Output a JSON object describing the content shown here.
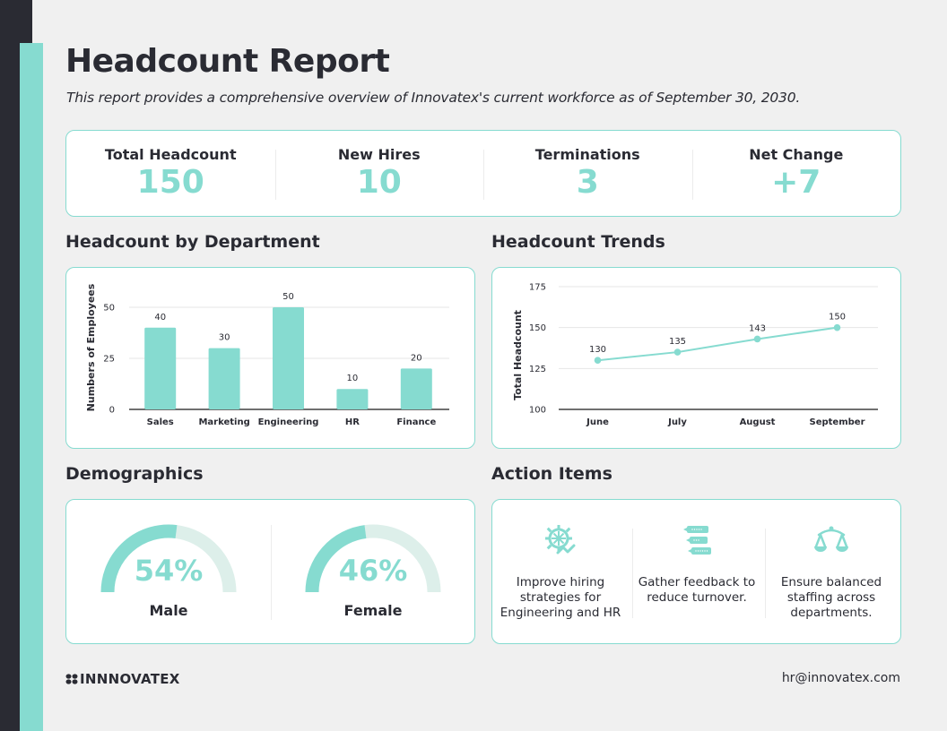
{
  "header": {
    "title": "Headcount Report",
    "subtitle": "This report provides a comprehensive overview of Innovatex's current workforce as of September 30, 2030."
  },
  "kpis": [
    {
      "label": "Total Headcount",
      "value": "150"
    },
    {
      "label": "New Hires",
      "value": "10"
    },
    {
      "label": "Terminations",
      "value": "3"
    },
    {
      "label": "Net Change",
      "value": "+7"
    }
  ],
  "sections": {
    "department": "Headcount by Department",
    "trends": "Headcount Trends",
    "demographics": "Demographics",
    "actions": "Action Items"
  },
  "colors": {
    "accent": "#86dbd0",
    "accent_light": "#ddefea",
    "dark": "#2a2b33",
    "background": "#f0f0f0"
  },
  "chart_data": [
    {
      "type": "bar",
      "title": "Headcount by Department",
      "categories": [
        "Sales",
        "Marketing",
        "Engineering",
        "HR",
        "Finance"
      ],
      "values": [
        40,
        30,
        50,
        10,
        20
      ],
      "data_labels": [
        "40",
        "30",
        "50",
        "10",
        "20"
      ],
      "xlabel": "",
      "ylabel": "Numbers of Employees",
      "ylim": [
        0,
        50
      ],
      "yticks": [
        0,
        25,
        50
      ],
      "grid": true
    },
    {
      "type": "line",
      "title": "Headcount Trends",
      "categories": [
        "June",
        "July",
        "August",
        "September"
      ],
      "values": [
        130,
        135,
        143,
        150
      ],
      "data_labels": [
        "130",
        "135",
        "143",
        "150"
      ],
      "xlabel": "",
      "ylabel": "Total Headcount",
      "ylim": [
        100,
        175
      ],
      "yticks": [
        100,
        125,
        150,
        175
      ],
      "grid": true
    }
  ],
  "demographics": [
    {
      "label": "Male",
      "percent": 54,
      "display": "54%"
    },
    {
      "label": "Female",
      "percent": 46,
      "display": "46%"
    }
  ],
  "actions": [
    {
      "icon": "gear-chart-icon",
      "text": "Improve hiring strategies for Engineering and HR"
    },
    {
      "icon": "chat-bubbles-icon",
      "text": "Gather feedback to reduce turnover."
    },
    {
      "icon": "balance-scale-icon",
      "text": "Ensure balanced staffing across departments."
    }
  ],
  "footer": {
    "logo_text": "INNNOVATEX",
    "email": "hr@innovatex.com"
  }
}
